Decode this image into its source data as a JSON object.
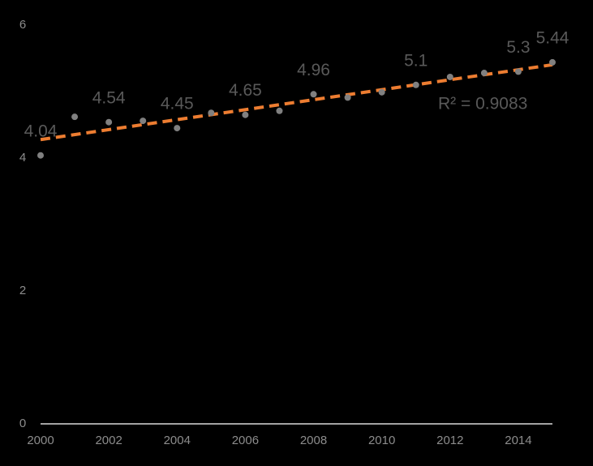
{
  "chart_data": {
    "type": "scatter",
    "x": [
      2000,
      2001,
      2002,
      2003,
      2004,
      2005,
      2006,
      2007,
      2008,
      2009,
      2010,
      2011,
      2012,
      2013,
      2014,
      2015
    ],
    "values": [
      4.04,
      4.62,
      4.54,
      4.56,
      4.45,
      4.68,
      4.65,
      4.71,
      4.96,
      4.91,
      4.99,
      5.1,
      5.22,
      5.28,
      5.3,
      5.44
    ],
    "value_labels": [
      "4.04",
      null,
      "4.54",
      null,
      "4.45",
      null,
      "4.65",
      null,
      "4.96",
      null,
      null,
      "5.1",
      null,
      null,
      "5.3",
      "5.44"
    ],
    "color": "#808080",
    "trendline": {
      "type": "linear",
      "color": "#ed7d31",
      "label": "R² = 0.9083"
    },
    "xlim": [
      2000,
      2015
    ],
    "xticks": [
      2000,
      2002,
      2004,
      2006,
      2008,
      2010,
      2012,
      2014
    ],
    "ylim": [
      0,
      6
    ],
    "yticks": [
      0,
      2,
      4,
      6
    ],
    "grid": false
  }
}
